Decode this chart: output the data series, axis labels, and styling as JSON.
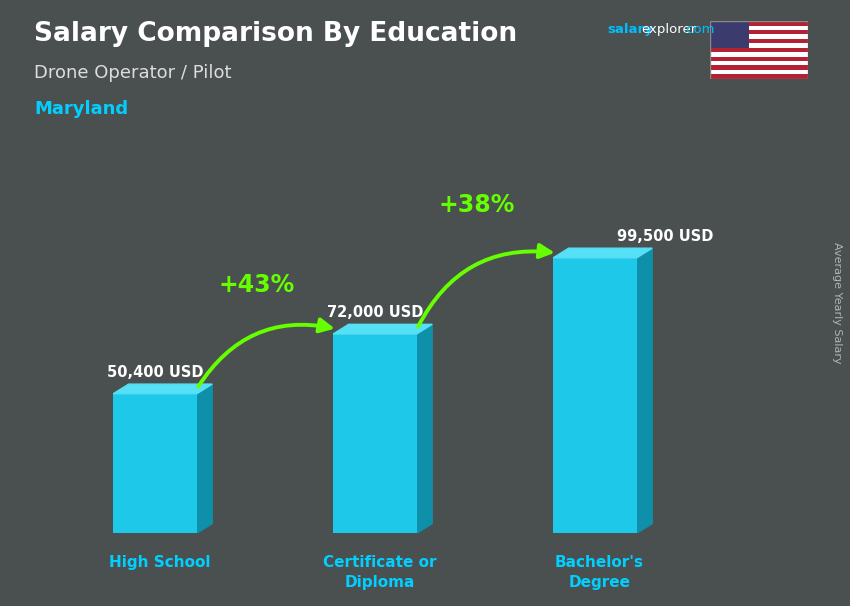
{
  "title": "Salary Comparison By Education",
  "subtitle": "Drone Operator / Pilot",
  "location": "Maryland",
  "ylabel": "Average Yearly Salary",
  "categories": [
    "High School",
    "Certificate or\nDiploma",
    "Bachelor's\nDegree"
  ],
  "values": [
    50400,
    72000,
    99500
  ],
  "value_labels": [
    "50,400 USD",
    "72,000 USD",
    "99,500 USD"
  ],
  "pct_labels": [
    "+43%",
    "+38%"
  ],
  "bar_color_face": "#1EC8E8",
  "bar_color_right": "#0E8FAA",
  "bar_color_top": "#55E0F5",
  "bar_width": 0.38,
  "bg_color": "#5a6060",
  "title_color": "#ffffff",
  "subtitle_color": "#dddddd",
  "location_color": "#00CFFF",
  "label_color": "#ffffff",
  "pct_color": "#88FF00",
  "tick_label_color": "#00CFFF",
  "watermark_salary_color": "#00BFFF",
  "watermark_explorer_color": "#ffffff",
  "ylabel_color": "#cccccc",
  "arrow_color": "#66FF00",
  "figsize": [
    8.5,
    6.06
  ],
  "dpi": 100
}
